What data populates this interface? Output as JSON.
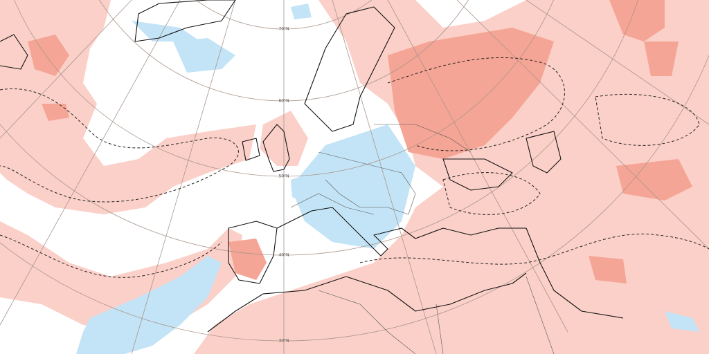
{
  "map": {
    "graticule_labels": [
      "70°N",
      "60°N",
      "50°N",
      "40°N",
      "30°N"
    ]
  }
}
